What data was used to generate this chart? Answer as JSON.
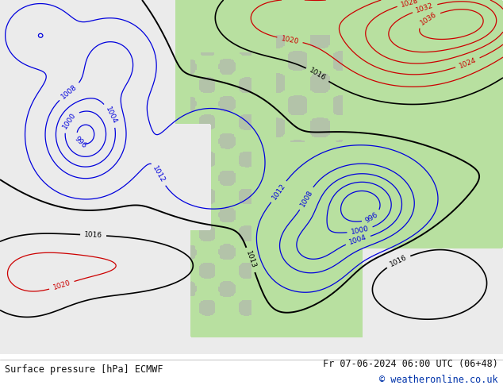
{
  "title_left": "Surface pressure [hPa] ECMWF",
  "title_right": "Fr 07-06-2024 06:00 UTC (06+48)",
  "copyright": "© weatheronline.co.uk",
  "bg_color": "#ffffff",
  "text_color": "#1a1a2e",
  "footer_font_size": 8.5,
  "fig_width": 6.34,
  "fig_height": 4.9,
  "dpi": 100,
  "green_fill": "#b8e0a0",
  "gray_fill": "#b0b0b0",
  "sea_color": "#f0f0f0",
  "contour_blue_color": "#0000dd",
  "contour_red_color": "#cc0000",
  "contour_black_color": "#000000",
  "label_fontsize": 6.5
}
